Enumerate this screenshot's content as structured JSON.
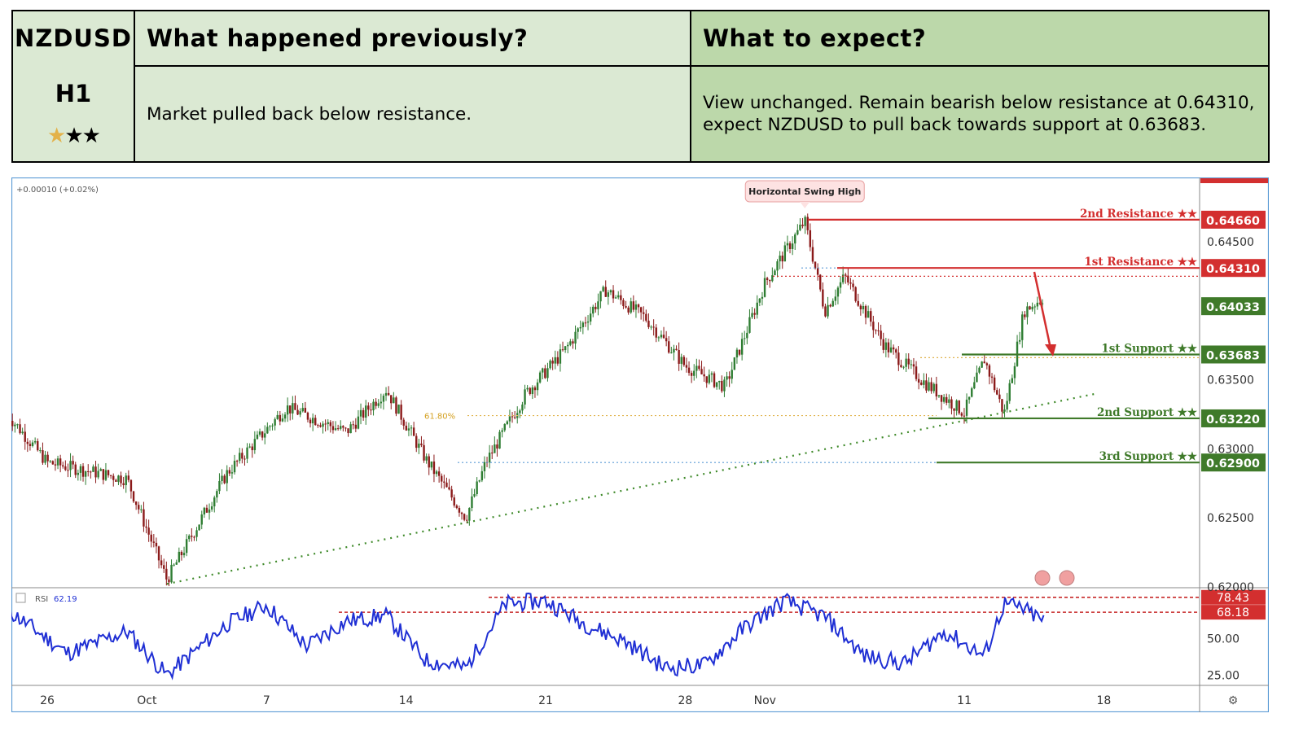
{
  "header": {
    "pair": "NZDUSD",
    "timeframe": "H1",
    "rating": {
      "filled": 1,
      "total": 3
    },
    "col_prev_title": "What happened previously?",
    "col_exp_title": "What to expect?",
    "prev_text": "Market pulled back below resistance.",
    "exp_text": "View unchanged. Remain bearish below resistance at 0.64310, expect NZDUSD to pull back towards support at 0.63683."
  },
  "chart_data": {
    "type": "line",
    "instrument": "NZDUSD",
    "timeframe": "H1",
    "change_label": "+0.00010 (+0.02%)",
    "x_tick_labels": [
      "26",
      "Oct",
      "7",
      "14",
      "21",
      "28",
      "Nov",
      "11",
      "18"
    ],
    "price_axis": {
      "ylim": [
        0.6198,
        0.6475
      ],
      "tick_labels": [
        "0.64500",
        "0.63500",
        "0.63000",
        "0.62500",
        "0.62000"
      ]
    },
    "price_series": {
      "name": "price",
      "x": [
        "Sep 24",
        "Sep 26",
        "Sep 30",
        "Oct 2",
        "Oct 5",
        "Oct 8",
        "Oct 11",
        "Oct 13",
        "Oct 15",
        "Oct 17",
        "Oct 18",
        "Oct 20",
        "Oct 22",
        "Oct 24",
        "Oct 26",
        "Oct 28",
        "Oct 30",
        "Nov 1",
        "Nov 3",
        "Nov 4",
        "Nov 5",
        "Nov 7",
        "Nov 9",
        "Nov 11",
        "Nov 12",
        "Nov 13",
        "Nov 14",
        "Nov 15"
      ],
      "values": [
        0.6325,
        0.629,
        0.6278,
        0.6205,
        0.6282,
        0.633,
        0.6312,
        0.6343,
        0.6292,
        0.625,
        0.629,
        0.634,
        0.6372,
        0.6415,
        0.6395,
        0.636,
        0.6345,
        0.642,
        0.6465,
        0.64,
        0.6425,
        0.6375,
        0.6348,
        0.6326,
        0.6365,
        0.6325,
        0.64,
        0.641
      ]
    },
    "levels": [
      {
        "label": "2nd Resistance",
        "stars": "★★",
        "value": "0.64660",
        "color": "#d32f2f"
      },
      {
        "label": "1st Resistance",
        "stars": "★★",
        "value": "0.64310",
        "color": "#d32f2f"
      },
      {
        "label": "1st Support",
        "stars": "★★",
        "value": "0.63683",
        "color": "#3f7a2a"
      },
      {
        "label": "2nd Support",
        "stars": "★★",
        "value": "0.63220",
        "color": "#3f7a2a"
      },
      {
        "label": "3rd Support",
        "stars": "★★",
        "value": "0.62900",
        "color": "#3f7a2a"
      }
    ],
    "current_price_label": "0.64033",
    "annotations": {
      "swing_high": "Horizontal Swing High",
      "fib_label": "61.80%"
    },
    "rsi": {
      "name": "RSI",
      "value_label": "62.19",
      "ylim": [
        18,
        85
      ],
      "tick_labels": [
        "50.00",
        "25.00"
      ],
      "levels": [
        "78.43",
        "68.18"
      ],
      "x": [
        "Sep 24",
        "Sep 27",
        "Sep 30",
        "Oct 2",
        "Oct 5",
        "Oct 7",
        "Oct 9",
        "Oct 11",
        "Oct 13",
        "Oct 15",
        "Oct 17",
        "Oct 19",
        "Oct 21",
        "Oct 23",
        "Oct 25",
        "Oct 27",
        "Oct 29",
        "Oct 31",
        "Nov 2",
        "Nov 4",
        "Nov 6",
        "Nov 8",
        "Nov 10",
        "Nov 12",
        "Nov 13",
        "Nov 14",
        "Nov 15"
      ],
      "values": [
        70,
        40,
        55,
        25,
        60,
        73,
        45,
        62,
        66,
        35,
        30,
        74,
        76,
        60,
        48,
        30,
        32,
        58,
        76,
        65,
        38,
        33,
        55,
        38,
        74,
        70,
        62
      ]
    },
    "colors": {
      "candle_up": "#2e7d32",
      "candle_down": "#8b1a1a",
      "rsi_line": "#1f2fd4",
      "resistance": "#d32f2f",
      "support": "#3f7a2a"
    }
  }
}
